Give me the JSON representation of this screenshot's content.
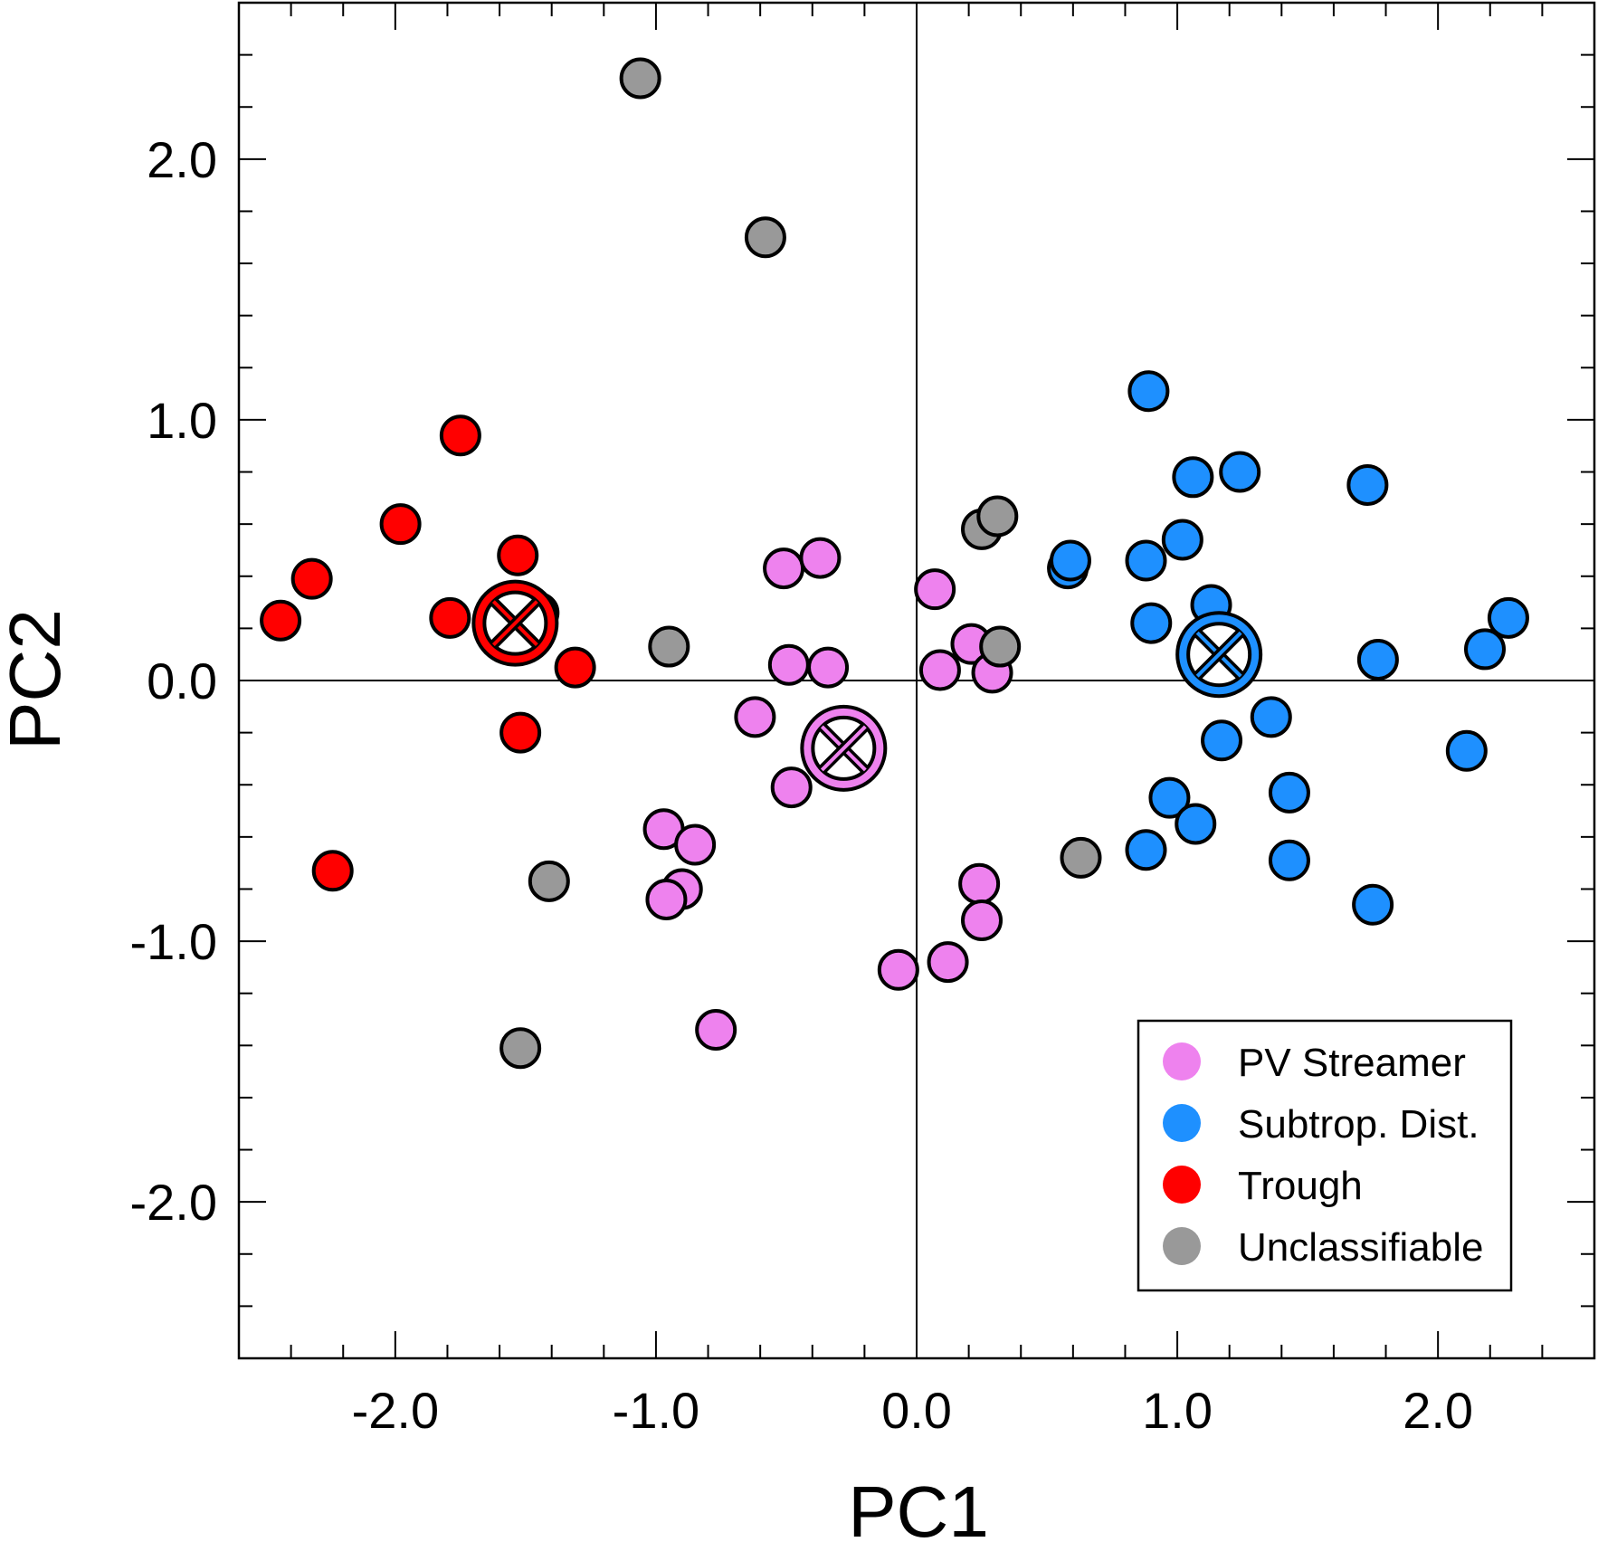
{
  "chart_data": {
    "type": "scatter",
    "title": "",
    "xlabel": "PC1",
    "ylabel": "PC2",
    "xlim": [
      -2.6,
      2.6
    ],
    "ylim": [
      -2.6,
      2.6
    ],
    "x_ticks": [
      -2.0,
      -1.0,
      0.0,
      1.0,
      2.0
    ],
    "y_ticks": [
      -2.0,
      -1.0,
      0.0,
      1.0,
      2.0
    ],
    "x_tick_labels": [
      "-2.0",
      "-1.0",
      "0.0",
      "1.0",
      "2.0"
    ],
    "y_tick_labels": [
      "-2.0",
      "-1.0",
      "0.0",
      "1.0",
      "2.0"
    ],
    "reference_lines": {
      "x": 0,
      "y": 0
    },
    "grid": false,
    "legend_position": "bottom-right",
    "series": [
      {
        "name": "PV Streamer",
        "color": "#ee82ee",
        "points": [
          [
            -0.51,
            0.43
          ],
          [
            -0.37,
            0.47
          ],
          [
            0.07,
            0.35
          ],
          [
            -0.49,
            0.06
          ],
          [
            -0.34,
            0.05
          ],
          [
            0.09,
            0.04
          ],
          [
            0.21,
            0.14
          ],
          [
            0.29,
            0.03
          ],
          [
            -0.62,
            -0.14
          ],
          [
            -0.48,
            -0.41
          ],
          [
            -0.97,
            -0.57
          ],
          [
            -0.85,
            -0.63
          ],
          [
            -0.9,
            -0.8
          ],
          [
            -0.96,
            -0.84
          ],
          [
            0.24,
            -0.78
          ],
          [
            0.25,
            -0.92
          ],
          [
            -0.77,
            -1.34
          ],
          [
            -0.07,
            -1.11
          ],
          [
            0.12,
            -1.08
          ]
        ],
        "centroid": [
          -0.28,
          -0.26
        ]
      },
      {
        "name": "Subtrop. Dist.",
        "color": "#1e90ff",
        "points": [
          [
            0.89,
            1.11
          ],
          [
            1.06,
            0.78
          ],
          [
            1.24,
            0.8
          ],
          [
            1.73,
            0.75
          ],
          [
            1.02,
            0.54
          ],
          [
            0.58,
            0.43
          ],
          [
            0.59,
            0.46
          ],
          [
            0.88,
            0.46
          ],
          [
            1.13,
            0.29
          ],
          [
            0.9,
            0.22
          ],
          [
            1.17,
            0.12
          ],
          [
            2.27,
            0.24
          ],
          [
            2.18,
            0.12
          ],
          [
            1.77,
            0.08
          ],
          [
            1.36,
            -0.14
          ],
          [
            1.17,
            -0.23
          ],
          [
            2.11,
            -0.27
          ],
          [
            0.97,
            -0.45
          ],
          [
            1.07,
            -0.55
          ],
          [
            1.43,
            -0.43
          ],
          [
            0.88,
            -0.65
          ],
          [
            1.43,
            -0.69
          ],
          [
            1.75,
            -0.86
          ]
        ],
        "centroid": [
          1.16,
          0.1
        ]
      },
      {
        "name": "Trough",
        "color": "#ff0000",
        "points": [
          [
            -1.75,
            0.94
          ],
          [
            -1.98,
            0.6
          ],
          [
            -2.32,
            0.39
          ],
          [
            -2.44,
            0.23
          ],
          [
            -1.79,
            0.24
          ],
          [
            -1.53,
            0.48
          ],
          [
            -1.45,
            0.26
          ],
          [
            -1.5,
            0.18
          ],
          [
            -1.31,
            0.05
          ],
          [
            -1.52,
            -0.2
          ],
          [
            -2.24,
            -0.73
          ]
        ],
        "centroid": [
          -1.54,
          0.22
        ]
      },
      {
        "name": "Unclassifiable",
        "color": "#999999",
        "points": [
          [
            -1.06,
            2.31
          ],
          [
            -0.58,
            1.7
          ],
          [
            0.25,
            0.58
          ],
          [
            0.31,
            0.63
          ],
          [
            -0.95,
            0.13
          ],
          [
            0.32,
            0.13
          ],
          [
            0.63,
            -0.68
          ],
          [
            -1.41,
            -0.77
          ],
          [
            -1.52,
            -1.41
          ]
        ]
      }
    ],
    "legend": [
      {
        "label": "PV Streamer",
        "color": "#ee82ee"
      },
      {
        "label": "Subtrop. Dist.",
        "color": "#1e90ff"
      },
      {
        "label": "Trough",
        "color": "#ff0000"
      },
      {
        "label": "Unclassifiable",
        "color": "#999999"
      }
    ]
  }
}
